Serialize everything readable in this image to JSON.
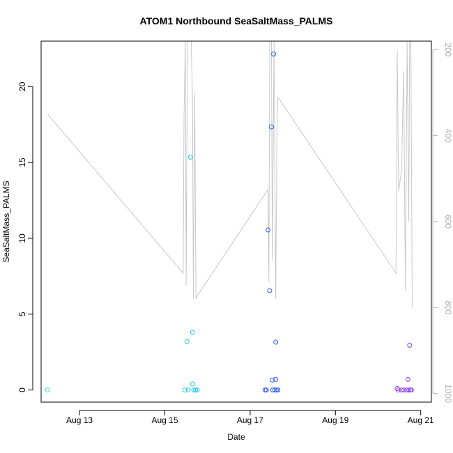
{
  "chart_data": {
    "type": "scatter",
    "title": "ATOM1 Northbound SeaSaltMass_PALMS",
    "xlabel": "Date",
    "ylabel": "SeaSaltMass_PALMS",
    "xlim": [
      12.1,
      21.25
    ],
    "ylim": [
      -0.8,
      23.0
    ],
    "x_ticks": [
      {
        "x": 13,
        "label": "Aug 13"
      },
      {
        "x": 15,
        "label": "Aug 15"
      },
      {
        "x": 17,
        "label": "Aug 17"
      },
      {
        "x": 19,
        "label": "Aug 19"
      },
      {
        "x": 21,
        "label": "Aug 21"
      }
    ],
    "y_ticks": [
      0,
      5,
      10,
      15,
      20
    ],
    "secondary_axis": {
      "side": "right",
      "reversed": true,
      "color": "#b0b0b0",
      "range": [
        1020,
        180
      ],
      "ticks": [
        200,
        400,
        600,
        800,
        1000
      ]
    },
    "grid": false,
    "series": [
      {
        "color": "#2ee6c4",
        "points": [
          [
            12.25,
            0.0
          ]
        ]
      },
      {
        "color": "#20c8e8",
        "points": [
          [
            15.47,
            0.0
          ],
          [
            15.52,
            3.2
          ],
          [
            15.55,
            0.0
          ],
          [
            15.6,
            15.35
          ],
          [
            15.65,
            3.8
          ],
          [
            15.65,
            0.4
          ],
          [
            15.68,
            0.0
          ],
          [
            15.72,
            0.0
          ],
          [
            15.76,
            0.0
          ]
        ]
      },
      {
        "color": "#2a5cf0",
        "points": [
          [
            17.35,
            0.0
          ],
          [
            17.38,
            0.0
          ],
          [
            17.42,
            10.55
          ],
          [
            17.46,
            6.55
          ],
          [
            17.5,
            17.35
          ],
          [
            17.52,
            0.65
          ],
          [
            17.53,
            0.0
          ],
          [
            17.55,
            22.15
          ],
          [
            17.58,
            0.0
          ],
          [
            17.6,
            3.15
          ],
          [
            17.6,
            0.7
          ],
          [
            17.62,
            0.0
          ],
          [
            17.65,
            0.0
          ]
        ]
      },
      {
        "color": "#8a3cf0",
        "points": [
          [
            20.45,
            0.1
          ],
          [
            20.47,
            0.0
          ],
          [
            20.55,
            0.0
          ],
          [
            20.6,
            0.0
          ],
          [
            20.67,
            0.0
          ],
          [
            20.7,
            0.7
          ],
          [
            20.72,
            0.0
          ],
          [
            20.74,
            2.95
          ],
          [
            20.76,
            0.0
          ],
          [
            20.78,
            0.0
          ]
        ]
      }
    ],
    "altitude_trace": {
      "color": "#c8c8c8",
      "points": [
        [
          12.25,
          350
        ],
        [
          15.43,
          720
        ],
        [
          15.45,
          360
        ],
        [
          15.48,
          180
        ],
        [
          15.5,
          750
        ],
        [
          15.53,
          180
        ],
        [
          15.62,
          180
        ],
        [
          15.65,
          330
        ],
        [
          15.67,
          780
        ],
        [
          15.7,
          300
        ],
        [
          15.73,
          780
        ],
        [
          15.78,
          770
        ],
        [
          17.42,
          525
        ],
        [
          17.44,
          740
        ],
        [
          17.46,
          180
        ],
        [
          17.5,
          180
        ],
        [
          17.52,
          690
        ],
        [
          17.56,
          180
        ],
        [
          17.6,
          780
        ],
        [
          17.63,
          390
        ],
        [
          17.65,
          310
        ],
        [
          20.42,
          720
        ],
        [
          20.45,
          200
        ],
        [
          20.48,
          530
        ],
        [
          20.55,
          480
        ],
        [
          20.6,
          250
        ],
        [
          20.64,
          760
        ],
        [
          20.68,
          180
        ],
        [
          20.72,
          600
        ],
        [
          20.74,
          180
        ],
        [
          20.77,
          180
        ],
        [
          20.8,
          800
        ]
      ]
    }
  }
}
